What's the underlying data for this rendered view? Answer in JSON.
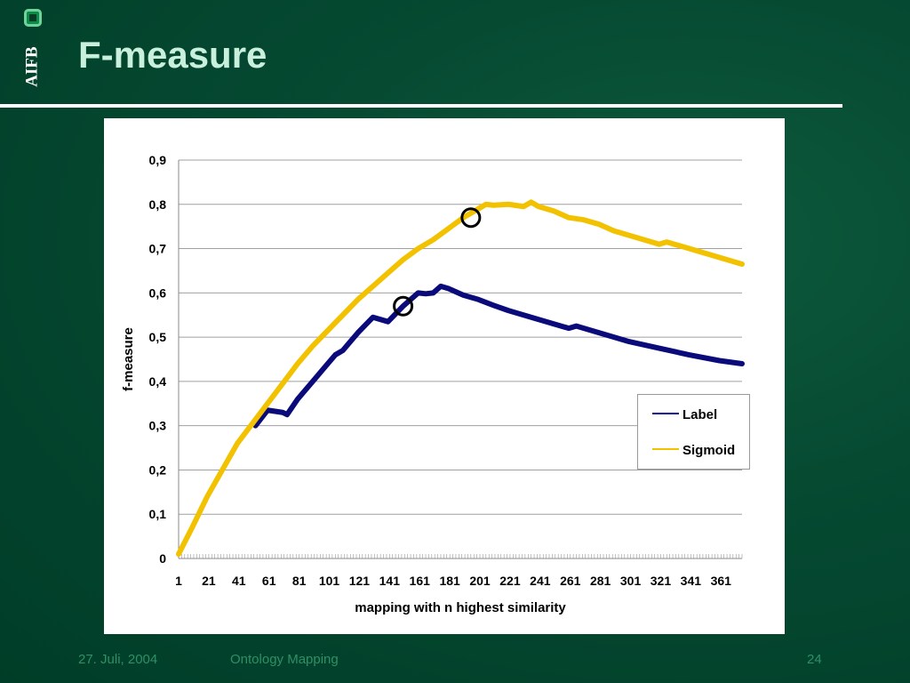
{
  "logo": {
    "text": "AIFB"
  },
  "slide": {
    "title": "F-measure"
  },
  "footer": {
    "date": "27. Juli, 2004",
    "topic": "Ontology Mapping",
    "page": "24"
  },
  "colors": {
    "label_series": "#0a0a7a",
    "sigmoid_series": "#f2c200",
    "background": "#003d28"
  },
  "chart_data": {
    "type": "line",
    "title": "",
    "xlabel": "mapping with n highest similarity",
    "ylabel": "f-measure",
    "xlim": [
      1,
      375
    ],
    "ylim": [
      0,
      0.9
    ],
    "y_ticks": [
      "0",
      "0,1",
      "0,2",
      "0,3",
      "0,4",
      "0,5",
      "0,6",
      "0,7",
      "0,8",
      "0,9"
    ],
    "x_ticks": [
      1,
      21,
      41,
      61,
      81,
      101,
      121,
      141,
      161,
      181,
      201,
      221,
      241,
      261,
      281,
      301,
      321,
      341,
      361
    ],
    "grid": "horizontal",
    "legend_position": "right",
    "series": [
      {
        "name": "Label",
        "color": "#0a0a7a",
        "x": [
          52,
          60,
          70,
          73,
          80,
          90,
          100,
          105,
          110,
          120,
          130,
          140,
          150,
          160,
          165,
          170,
          175,
          180,
          190,
          200,
          210,
          220,
          240,
          260,
          265,
          280,
          300,
          320,
          340,
          360,
          375
        ],
        "y": [
          0.3,
          0.335,
          0.33,
          0.325,
          0.36,
          0.4,
          0.44,
          0.46,
          0.47,
          0.51,
          0.545,
          0.535,
          0.57,
          0.6,
          0.598,
          0.6,
          0.615,
          0.61,
          0.595,
          0.585,
          0.572,
          0.56,
          0.54,
          0.52,
          0.525,
          0.51,
          0.49,
          0.475,
          0.46,
          0.447,
          0.44
        ]
      },
      {
        "name": "Sigmoid",
        "color": "#f2c200",
        "x": [
          1,
          10,
          20,
          30,
          40,
          50,
          60,
          70,
          80,
          90,
          100,
          110,
          120,
          130,
          140,
          150,
          160,
          170,
          180,
          190,
          200,
          205,
          210,
          220,
          230,
          235,
          240,
          250,
          260,
          270,
          280,
          290,
          300,
          310,
          320,
          325,
          330,
          340,
          350,
          360,
          370,
          375
        ],
        "y": [
          0.01,
          0.07,
          0.14,
          0.2,
          0.26,
          0.305,
          0.35,
          0.395,
          0.44,
          0.48,
          0.515,
          0.55,
          0.585,
          0.615,
          0.645,
          0.675,
          0.7,
          0.72,
          0.745,
          0.77,
          0.79,
          0.8,
          0.798,
          0.8,
          0.795,
          0.805,
          0.795,
          0.785,
          0.77,
          0.765,
          0.755,
          0.74,
          0.73,
          0.72,
          0.71,
          0.715,
          0.71,
          0.7,
          0.69,
          0.68,
          0.67,
          0.665
        ]
      }
    ],
    "annotations": [
      {
        "type": "circle",
        "series": "Sigmoid",
        "x": 195,
        "y": 0.77
      },
      {
        "type": "circle",
        "series": "Label",
        "x": 150,
        "y": 0.57
      }
    ]
  }
}
